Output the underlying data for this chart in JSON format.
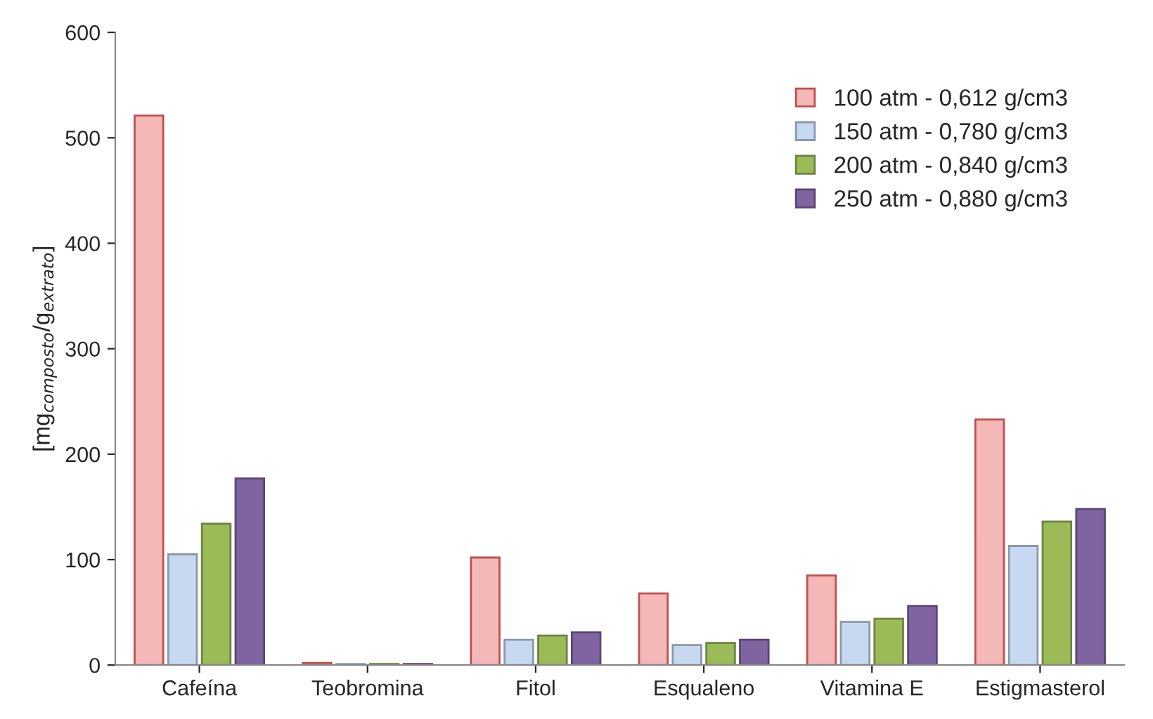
{
  "chart_data": {
    "type": "bar",
    "ylabel": "[mg$_{composto}$/g$_{extrato}$]",
    "categories": [
      "Cafeína",
      "Teobromina",
      "Fitol",
      "Esqualeno",
      "Vitamina E",
      "Estigmasterol"
    ],
    "series": [
      {
        "name": "100 atm - 0,612 g/cm3",
        "color": "#f4b8b8",
        "values": [
          521,
          2,
          102,
          68,
          85,
          233
        ]
      },
      {
        "name": "150 atm - 0,780 g/cm3",
        "color": "#c6d9f1",
        "values": [
          105,
          1,
          24,
          19,
          41,
          113
        ]
      },
      {
        "name": "200 atm - 0,840 g/cm3",
        "color": "#9bbb59",
        "values": [
          134,
          1,
          28,
          21,
          44,
          136
        ]
      },
      {
        "name": "250 atm - 0,880 g/cm3",
        "color": "#8064a2",
        "values": [
          177,
          1,
          31,
          24,
          56,
          148
        ]
      }
    ],
    "ylim": [
      0,
      600
    ],
    "yticks": [
      0,
      100,
      200,
      300,
      400,
      500,
      600
    ],
    "grid": false,
    "legend": "top right"
  }
}
